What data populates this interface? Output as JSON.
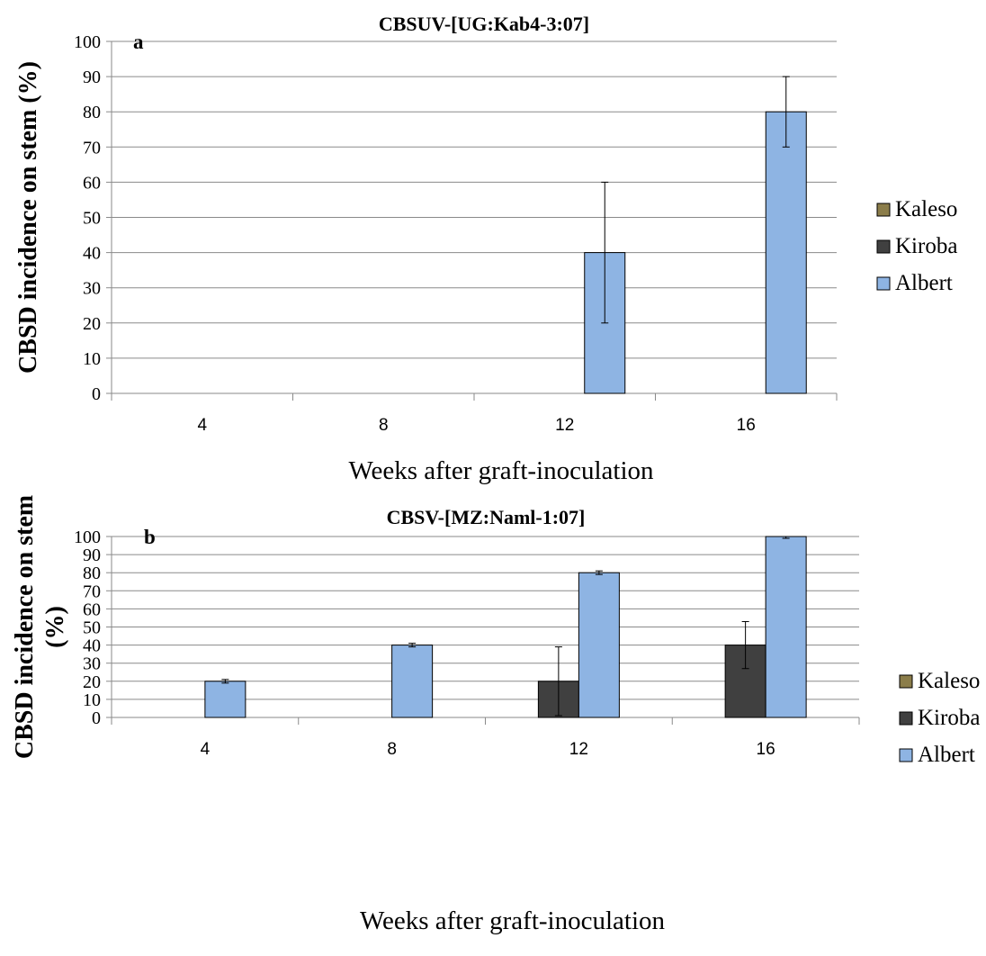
{
  "chart_data": [
    {
      "type": "bar",
      "panel_label": "a",
      "title": "CBSUV-[UG:Kab4-3:07]",
      "xlabel": "Weeks after graft-inoculation",
      "ylabel": "CBSD incidence on stem (%)",
      "ylim": [
        0,
        100
      ],
      "yticks": [
        0,
        10,
        20,
        30,
        40,
        50,
        60,
        70,
        80,
        90,
        100
      ],
      "grid": true,
      "legend_position": "right",
      "categories": [
        "4",
        "8",
        "12",
        "16"
      ],
      "series": [
        {
          "name": "Kaleso",
          "color": "#8B7D4A",
          "values": [
            0,
            0,
            0,
            0
          ],
          "errors": [
            0,
            0,
            0,
            0
          ]
        },
        {
          "name": "Kiroba",
          "color": "#404040",
          "values": [
            0,
            0,
            0,
            0
          ],
          "errors": [
            0,
            0,
            0,
            0
          ]
        },
        {
          "name": "Albert",
          "color": "#8EB4E3",
          "values": [
            0,
            0,
            40,
            80
          ],
          "errors": [
            0,
            0,
            20,
            10
          ]
        }
      ]
    },
    {
      "type": "bar",
      "panel_label": "b",
      "title": "CBSV-[MZ:Naml-1:07]",
      "xlabel": "Weeks after graft-inoculation",
      "ylabel_lines": [
        "CBSD incidence on stem",
        "(%)"
      ],
      "ylim": [
        0,
        100
      ],
      "yticks": [
        0,
        10,
        20,
        30,
        40,
        50,
        60,
        70,
        80,
        90,
        100
      ],
      "grid": true,
      "legend_position": "right",
      "categories": [
        "4",
        "8",
        "12",
        "16"
      ],
      "series": [
        {
          "name": "Kaleso",
          "color": "#8B7D4A",
          "values": [
            0,
            0,
            0,
            0
          ],
          "errors": [
            0,
            0,
            0,
            0
          ]
        },
        {
          "name": "Kiroba",
          "color": "#404040",
          "values": [
            0,
            0,
            20,
            40
          ],
          "errors": [
            0,
            0,
            19,
            13
          ]
        },
        {
          "name": "Albert",
          "color": "#8EB4E3",
          "values": [
            20,
            40,
            80,
            100
          ],
          "errors": [
            1,
            1,
            1,
            1
          ]
        }
      ]
    }
  ]
}
